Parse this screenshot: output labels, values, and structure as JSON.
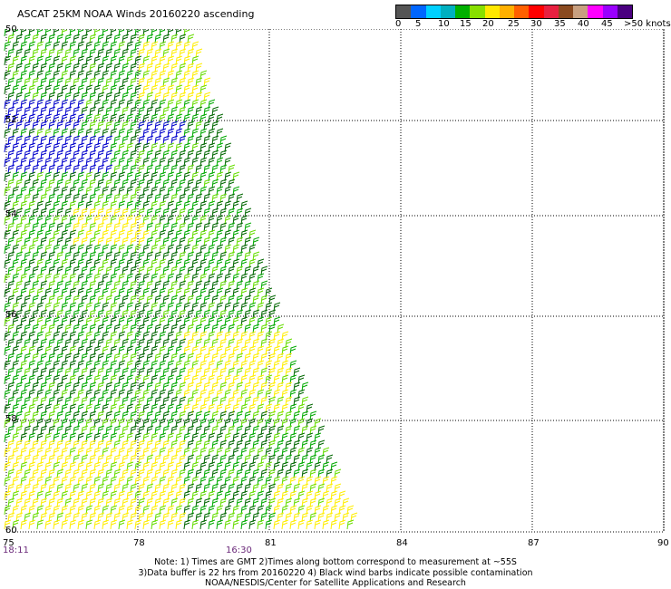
{
  "title": "ASCAT 25KM NOAA Winds 20160220 ascending",
  "scale": {
    "colors": [
      "#555555",
      "#0066ff",
      "#00d0ff",
      "#00b0c0",
      "#00b000",
      "#88e000",
      "#ffe800",
      "#ffb000",
      "#ff6000",
      "#ff0000",
      "#e82040",
      "#8a4a20",
      "#c8a080",
      "#ff00ff",
      "#9a00ff",
      "#4a0080"
    ],
    "labels": [
      "0",
      "5",
      "10",
      "15",
      "20",
      "25",
      "30",
      "35",
      "40",
      "45",
      ">50 knots"
    ]
  },
  "lat_labels": [
    "50",
    "52",
    "54",
    "56",
    "58",
    "60"
  ],
  "lon_labels": [
    "75",
    "78",
    "81",
    "84",
    "87",
    "90"
  ],
  "time_labels": [
    "18:11",
    "16:30"
  ],
  "note": {
    "line1": "Note: 1) Times are GMT 2)Times along bottom correspond to measurement at ~55S",
    "line2": "3)Data buffer is 22 hrs from 20160220 4) Black wind barbs indicate possible contamination",
    "line3": "NOAA/NESDIS/Center for Satellite Applications and Research"
  },
  "barb_colors": {
    "blue": "#0000cc",
    "dark_green": "#006600",
    "green": "#00aa00",
    "light_green": "#66dd00",
    "yellow": "#ffee00"
  }
}
